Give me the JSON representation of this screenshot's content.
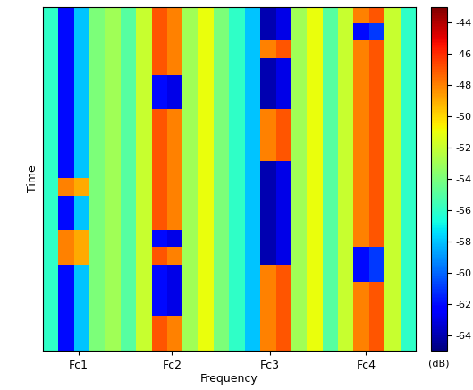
{
  "chart_data": {
    "type": "heatmap",
    "xlabel": "Frequency",
    "ylabel": "Time",
    "tick_labels": "x",
    "xlim": [
      0,
      24
    ],
    "ylim": [
      0,
      20
    ],
    "xticks": [
      {
        "value": 2.3,
        "label": "Fc1"
      },
      {
        "value": 8.3,
        "label": "Fc2"
      },
      {
        "value": 14.6,
        "label": "Fc3"
      },
      {
        "value": 20.8,
        "label": "Fc4"
      }
    ],
    "colorbar": {
      "label": "(dB)",
      "range": [
        -65,
        -43
      ],
      "ticks": [
        -64,
        -62,
        -60,
        -58,
        -56,
        -54,
        -52,
        -50,
        -48,
        -46,
        -44
      ]
    },
    "cells": [
      [
        -56,
        -62,
        -58,
        -54,
        -53,
        -55,
        -52,
        -47,
        -48,
        -53,
        -51,
        -54,
        -56,
        -58,
        -64,
        -63,
        -53,
        -51,
        -55,
        -52,
        -48,
        -47,
        -52,
        -56
      ],
      [
        -56,
        -62,
        -58,
        -54,
        -53,
        -55,
        -52,
        -47,
        -48,
        -53,
        -51,
        -54,
        -56,
        -58,
        -64,
        -63,
        -53,
        -51,
        -55,
        -52,
        -62,
        -61,
        -52,
        -56
      ],
      [
        -56,
        -62,
        -58,
        -54,
        -53,
        -55,
        -52,
        -47,
        -48,
        -53,
        -51,
        -54,
        -56,
        -58,
        -48,
        -47,
        -53,
        -51,
        -55,
        -52,
        -48,
        -47,
        -52,
        -56
      ],
      [
        -56,
        -62,
        -58,
        -54,
        -53,
        -55,
        -52,
        -47,
        -48,
        -53,
        -51,
        -54,
        -56,
        -58,
        -64,
        -63,
        -53,
        -51,
        -55,
        -52,
        -48,
        -47,
        -52,
        -56
      ],
      [
        -56,
        -62,
        -58,
        -54,
        -53,
        -55,
        -52,
        -62,
        -63,
        -53,
        -51,
        -54,
        -56,
        -58,
        -64,
        -63,
        -53,
        -51,
        -55,
        -52,
        -48,
        -47,
        -52,
        -56
      ],
      [
        -56,
        -62,
        -58,
        -54,
        -53,
        -55,
        -52,
        -62,
        -63,
        -53,
        -51,
        -54,
        -56,
        -58,
        -64,
        -63,
        -53,
        -51,
        -55,
        -52,
        -48,
        -47,
        -52,
        -56
      ],
      [
        -56,
        -62,
        -58,
        -54,
        -53,
        -55,
        -52,
        -47,
        -48,
        -53,
        -51,
        -54,
        -56,
        -58,
        -48,
        -47,
        -53,
        -51,
        -55,
        -52,
        -48,
        -47,
        -52,
        -56
      ],
      [
        -56,
        -62,
        -58,
        -54,
        -53,
        -55,
        -52,
        -47,
        -48,
        -53,
        -51,
        -54,
        -56,
        -58,
        -48,
        -47,
        -53,
        -51,
        -55,
        -52,
        -48,
        -47,
        -52,
        -56
      ],
      [
        -56,
        -62,
        -58,
        -54,
        -53,
        -55,
        -52,
        -47,
        -48,
        -53,
        -51,
        -54,
        -56,
        -58,
        -48,
        -47,
        -53,
        -51,
        -55,
        -52,
        -48,
        -47,
        -52,
        -56
      ],
      [
        -56,
        -62,
        -58,
        -54,
        -53,
        -55,
        -52,
        -47,
        -48,
        -53,
        -51,
        -54,
        -56,
        -58,
        -64,
        -63,
        -53,
        -51,
        -55,
        -52,
        -48,
        -47,
        -52,
        -56
      ],
      [
        -56,
        -48,
        -49,
        -54,
        -53,
        -55,
        -52,
        -47,
        -48,
        -53,
        -51,
        -54,
        -56,
        -58,
        -64,
        -63,
        -53,
        -51,
        -55,
        -52,
        -48,
        -47,
        -52,
        -56
      ],
      [
        -56,
        -62,
        -58,
        -54,
        -53,
        -55,
        -52,
        -47,
        -48,
        -53,
        -51,
        -54,
        -56,
        -58,
        -64,
        -63,
        -53,
        -51,
        -55,
        -52,
        -48,
        -47,
        -52,
        -56
      ],
      [
        -56,
        -62,
        -58,
        -54,
        -53,
        -55,
        -52,
        -47,
        -48,
        -53,
        -51,
        -54,
        -56,
        -58,
        -64,
        -63,
        -53,
        -51,
        -55,
        -52,
        -48,
        -47,
        -52,
        -56
      ],
      [
        -56,
        -48,
        -49,
        -54,
        -53,
        -55,
        -52,
        -62,
        -63,
        -53,
        -51,
        -54,
        -56,
        -58,
        -64,
        -63,
        -53,
        -51,
        -55,
        -52,
        -48,
        -47,
        -52,
        -56
      ],
      [
        -56,
        -48,
        -49,
        -54,
        -53,
        -55,
        -52,
        -47,
        -48,
        -53,
        -51,
        -54,
        -56,
        -58,
        -64,
        -63,
        -53,
        -51,
        -55,
        -52,
        -62,
        -61,
        -52,
        -56
      ],
      [
        -56,
        -62,
        -58,
        -54,
        -53,
        -55,
        -52,
        -62,
        -63,
        -53,
        -51,
        -54,
        -56,
        -58,
        -48,
        -47,
        -53,
        -51,
        -55,
        -52,
        -62,
        -61,
        -52,
        -56
      ],
      [
        -56,
        -62,
        -58,
        -54,
        -53,
        -55,
        -52,
        -62,
        -63,
        -53,
        -51,
        -54,
        -56,
        -58,
        -48,
        -47,
        -53,
        -51,
        -55,
        -52,
        -48,
        -47,
        -52,
        -56
      ],
      [
        -56,
        -62,
        -58,
        -54,
        -53,
        -55,
        -52,
        -62,
        -63,
        -53,
        -51,
        -54,
        -56,
        -58,
        -48,
        -47,
        -53,
        -51,
        -55,
        -52,
        -48,
        -47,
        -52,
        -56
      ],
      [
        -56,
        -62,
        -58,
        -54,
        -53,
        -55,
        -52,
        -47,
        -48,
        -53,
        -51,
        -54,
        -56,
        -58,
        -48,
        -47,
        -53,
        -51,
        -55,
        -52,
        -48,
        -47,
        -52,
        -56
      ],
      [
        -56,
        -62,
        -58,
        -54,
        -53,
        -55,
        -52,
        -47,
        -48,
        -53,
        -51,
        -54,
        -56,
        -58,
        -48,
        -47,
        -53,
        -51,
        -55,
        -52,
        -48,
        -47,
        -52,
        -56
      ]
    ]
  }
}
